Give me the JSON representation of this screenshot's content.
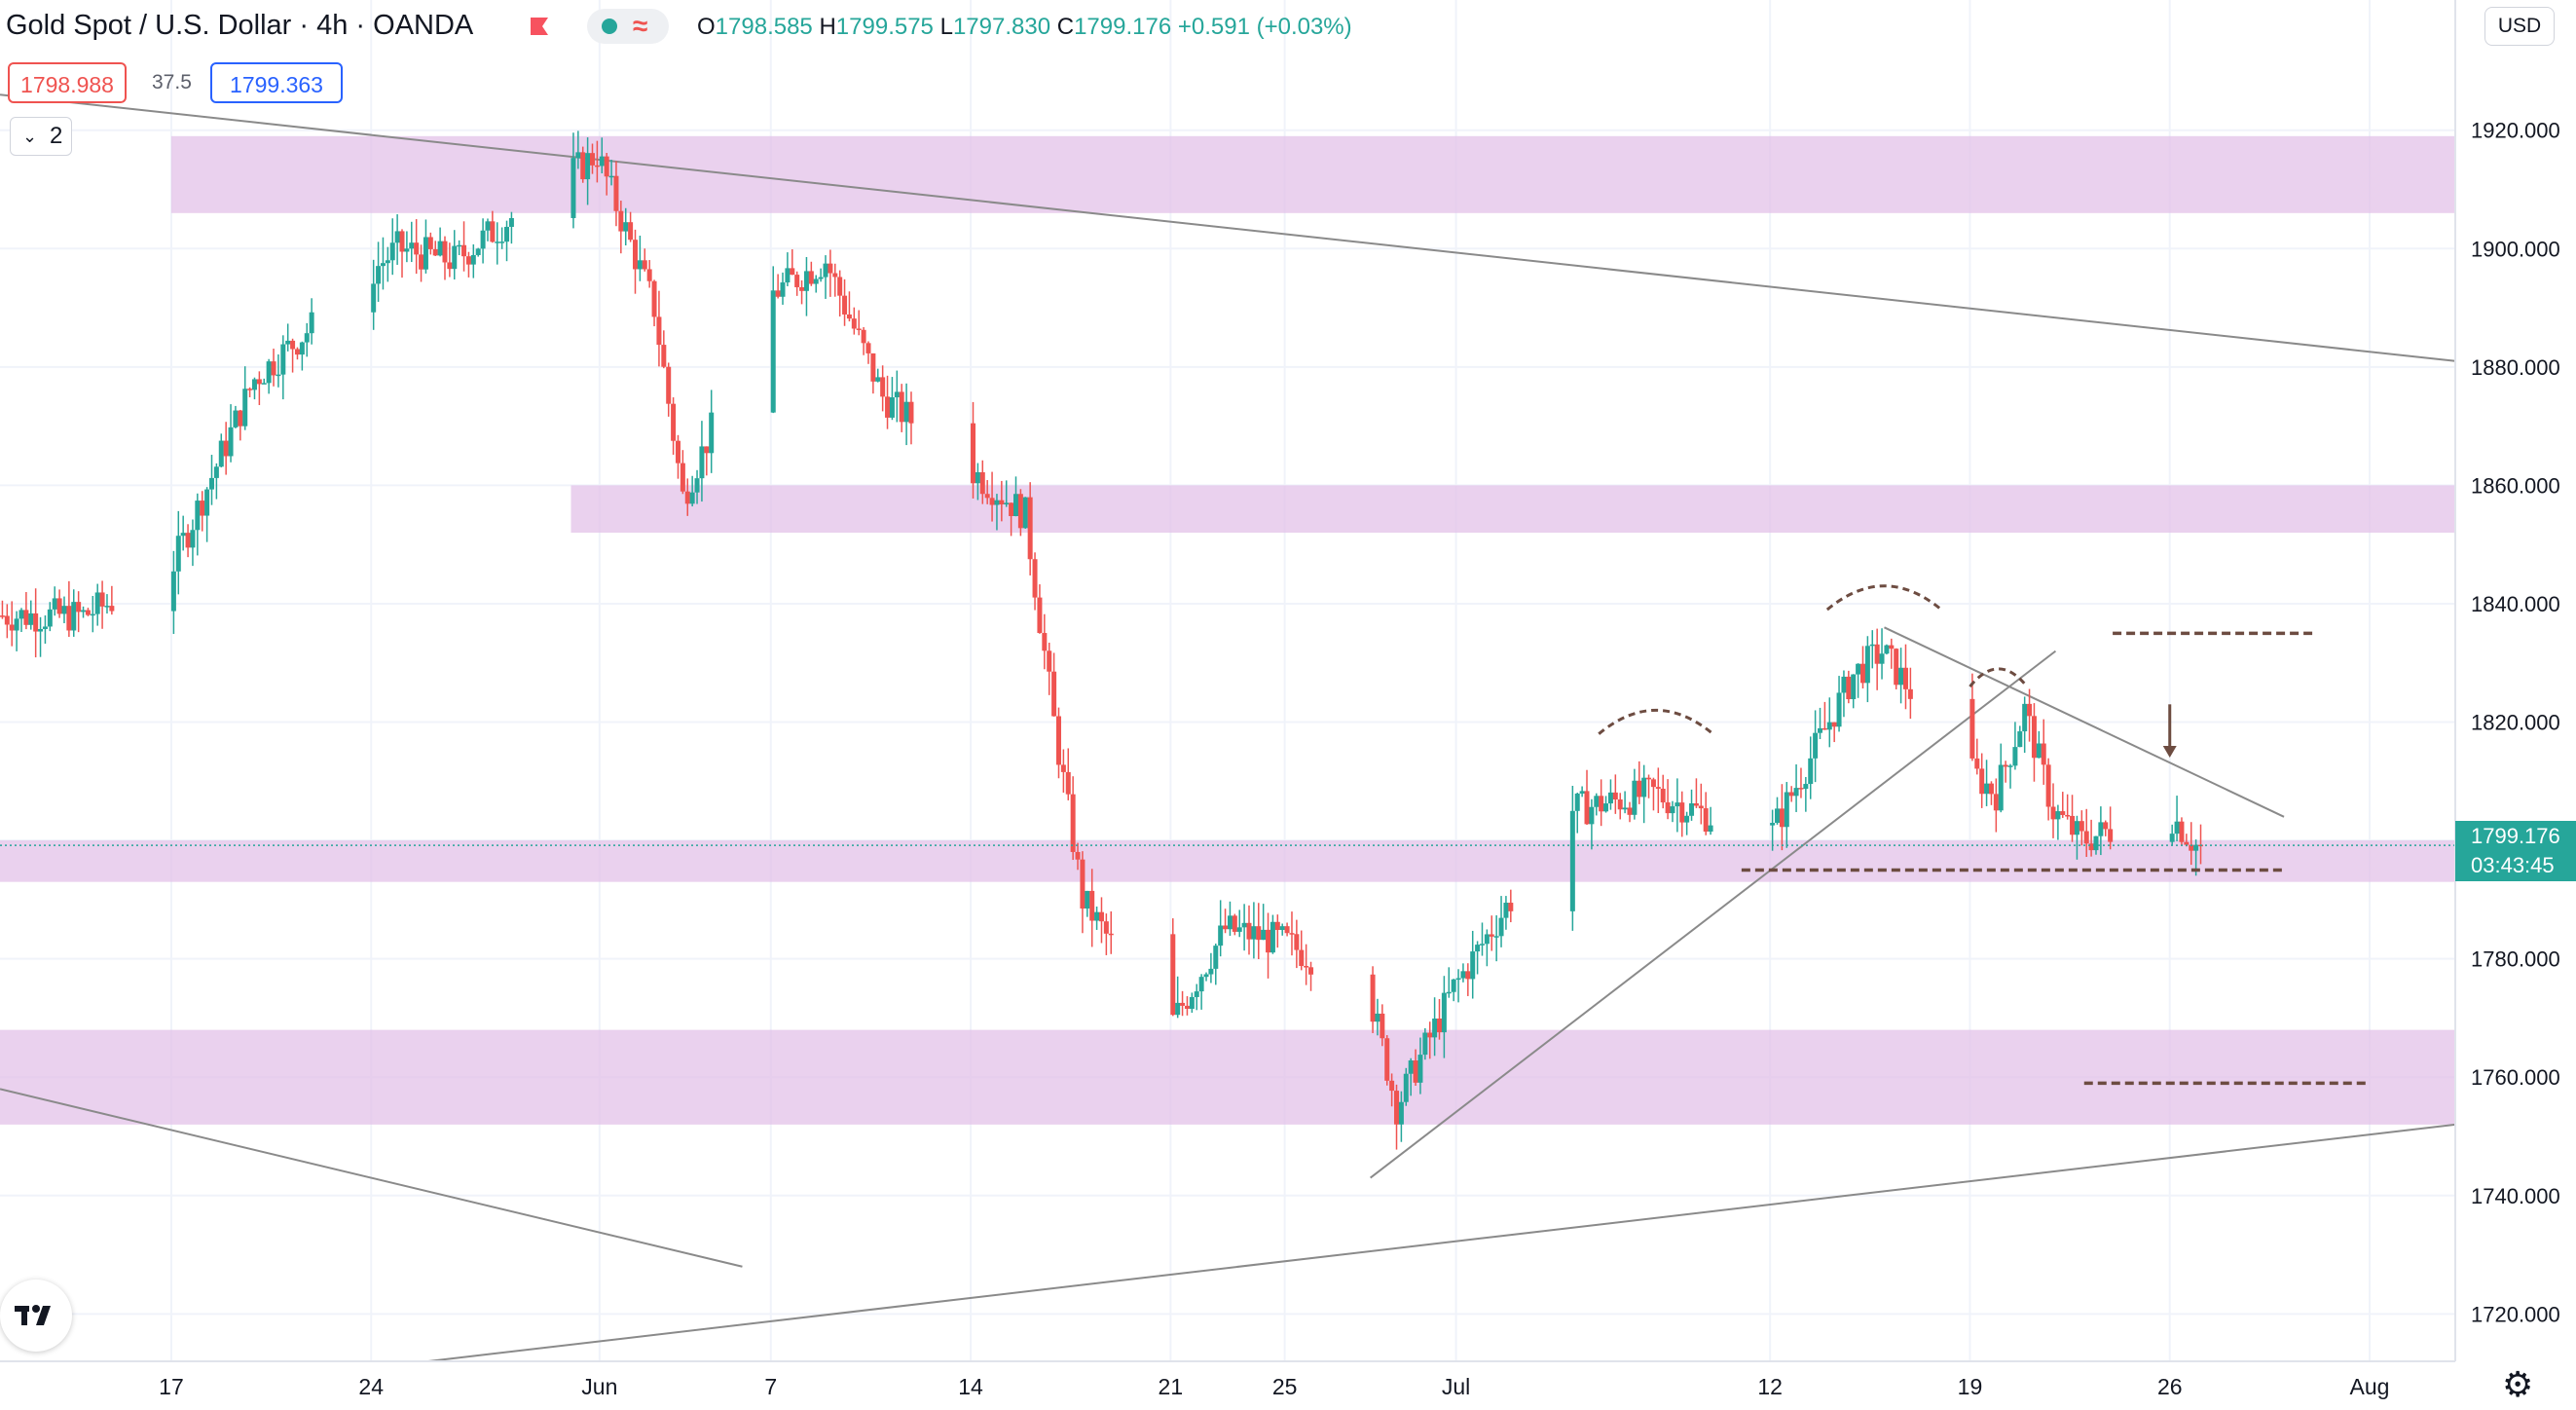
{
  "header": {
    "symbol_title": "Gold Spot / U.S. Dollar · 4h · OANDA",
    "ohlc": {
      "open_label": "O",
      "open": "1798.585",
      "high_label": "H",
      "high": "1799.575",
      "low_label": "L",
      "low": "1797.830",
      "close_label": "C",
      "close": "1799.176",
      "change": "+0.591 (+0.03%)"
    },
    "wave_icon": "≈"
  },
  "trade": {
    "sell_price": "1798.988",
    "spread": "37.5",
    "buy_price": "1799.363"
  },
  "indicators_toggle": {
    "chevron": "⌄",
    "count": "2"
  },
  "currency_button": "USD",
  "last_price": {
    "price": "1799.176",
    "countdown": "03:43:45"
  },
  "settings_icon": "⚙",
  "colors": {
    "up": "#26a69a",
    "down": "#ef5350",
    "zone": "#e1bee7",
    "trendline": "#8a8a8a",
    "pattern_line": "#6d4c41",
    "last_price": "#26a69a"
  },
  "chart_data": {
    "type": "candlestick",
    "symbol": "XAUUSD",
    "timeframe": "4h",
    "broker": "OANDA",
    "y_axis": {
      "ticks": [
        1720,
        1740,
        1760,
        1780,
        1800,
        1820,
        1840,
        1860,
        1880,
        1900,
        1920
      ],
      "tick_labels": [
        "1720.000",
        "1740.000",
        "1760.000",
        "1780.000",
        "1800.000",
        "1820.000",
        "1840.000",
        "1860.000",
        "1880.000",
        "1900.000",
        "1920.000"
      ],
      "range": [
        1712,
        1942
      ]
    },
    "x_axis": {
      "labels": [
        {
          "label": "17",
          "date": "2021-05-17"
        },
        {
          "label": "24",
          "date": "2021-05-24"
        },
        {
          "label": "Jun",
          "date": "2021-06-01"
        },
        {
          "label": "7",
          "date": "2021-06-07"
        },
        {
          "label": "14",
          "date": "2021-06-14"
        },
        {
          "label": "21",
          "date": "2021-06-21"
        },
        {
          "label": "25",
          "date": "2021-06-25"
        },
        {
          "label": "Jul",
          "date": "2021-07-01"
        },
        {
          "label": "12",
          "date": "2021-07-12"
        },
        {
          "label": "19",
          "date": "2021-07-19"
        },
        {
          "label": "26",
          "date": "2021-07-26"
        },
        {
          "label": "Aug",
          "date": "2021-08-02"
        }
      ],
      "range": [
        "2021-05-11",
        "2021-08-05"
      ]
    },
    "key_points": [
      {
        "date": "2021-05-14",
        "price": 1838
      },
      {
        "date": "2021-05-17",
        "price": 1845
      },
      {
        "date": "2021-05-20",
        "price": 1878
      },
      {
        "date": "2021-05-25",
        "price": 1900
      },
      {
        "date": "2021-05-27",
        "price": 1898
      },
      {
        "date": "2021-06-01",
        "price": 1916
      },
      {
        "date": "2021-06-03",
        "price": 1890
      },
      {
        "date": "2021-06-04",
        "price": 1858
      },
      {
        "date": "2021-06-07",
        "price": 1892
      },
      {
        "date": "2021-06-09",
        "price": 1898
      },
      {
        "date": "2021-06-11",
        "price": 1875
      },
      {
        "date": "2021-06-14",
        "price": 1863
      },
      {
        "date": "2021-06-16",
        "price": 1855
      },
      {
        "date": "2021-06-17",
        "price": 1820
      },
      {
        "date": "2021-06-18",
        "price": 1790
      },
      {
        "date": "2021-06-21",
        "price": 1768
      },
      {
        "date": "2021-06-23",
        "price": 1785
      },
      {
        "date": "2021-06-25",
        "price": 1783
      },
      {
        "date": "2021-06-28",
        "price": 1775
      },
      {
        "date": "2021-06-29",
        "price": 1755
      },
      {
        "date": "2021-07-01",
        "price": 1775
      },
      {
        "date": "2021-07-05",
        "price": 1805
      },
      {
        "date": "2021-07-08",
        "price": 1808
      },
      {
        "date": "2021-07-12",
        "price": 1800
      },
      {
        "date": "2021-07-15",
        "price": 1828
      },
      {
        "date": "2021-07-16",
        "price": 1832
      },
      {
        "date": "2021-07-19",
        "price": 1812
      },
      {
        "date": "2021-07-20",
        "price": 1808
      },
      {
        "date": "2021-07-21",
        "price": 1822
      },
      {
        "date": "2021-07-22",
        "price": 1805
      },
      {
        "date": "2021-07-23",
        "price": 1800
      },
      {
        "date": "2021-07-26",
        "price": 1805
      },
      {
        "date": "2021-07-27",
        "price": 1799.176
      }
    ],
    "last_price": 1799.176,
    "zones": [
      {
        "from_date": "2021-05-17",
        "to_date": "2021-08-05",
        "low": 1906,
        "high": 1919
      },
      {
        "from_date": "2021-05-31",
        "to_date": "2021-08-05",
        "low": 1852,
        "high": 1860
      },
      {
        "from_date": "2021-05-11",
        "to_date": "2021-08-05",
        "low": 1793,
        "high": 1800
      },
      {
        "from_date": "2021-05-11",
        "to_date": "2021-08-05",
        "low": 1752,
        "high": 1768
      }
    ],
    "trendlines": [
      {
        "from": [
          "2021-05-11",
          1926
        ],
        "to": [
          "2021-08-05",
          1881
        ]
      },
      {
        "from": [
          "2021-05-11",
          1758
        ],
        "to": [
          "2021-06-06",
          1728
        ]
      },
      {
        "from": [
          "2021-05-26",
          1712
        ],
        "to": [
          "2021-08-05",
          1752
        ]
      },
      {
        "from": [
          "2021-06-28",
          1743
        ],
        "to": [
          "2021-07-22",
          1832
        ]
      },
      {
        "from": [
          "2021-07-16",
          1836
        ],
        "to": [
          "2021-07-30",
          1804
        ]
      }
    ],
    "horizontal_levels": [
      {
        "from_date": "2021-07-11",
        "to_date": "2021-07-30",
        "price": 1795
      },
      {
        "from_date": "2021-07-24",
        "to_date": "2021-07-31",
        "price": 1835
      },
      {
        "from_date": "2021-07-23",
        "to_date": "2021-08-02",
        "price": 1759
      }
    ],
    "shoulder_arcs": [
      {
        "from_date": "2021-07-06",
        "to_date": "2021-07-10",
        "base_price": 1818,
        "peak_price": 1822
      },
      {
        "from_date": "2021-07-14",
        "to_date": "2021-07-18",
        "base_price": 1839,
        "peak_price": 1843
      },
      {
        "from_date": "2021-07-19",
        "to_date": "2021-07-21",
        "base_price": 1826,
        "peak_price": 1829
      }
    ],
    "arrow": {
      "date": "2021-07-26",
      "from_price": 1823,
      "to_price": 1814
    },
    "grid": true,
    "legend": "none"
  }
}
